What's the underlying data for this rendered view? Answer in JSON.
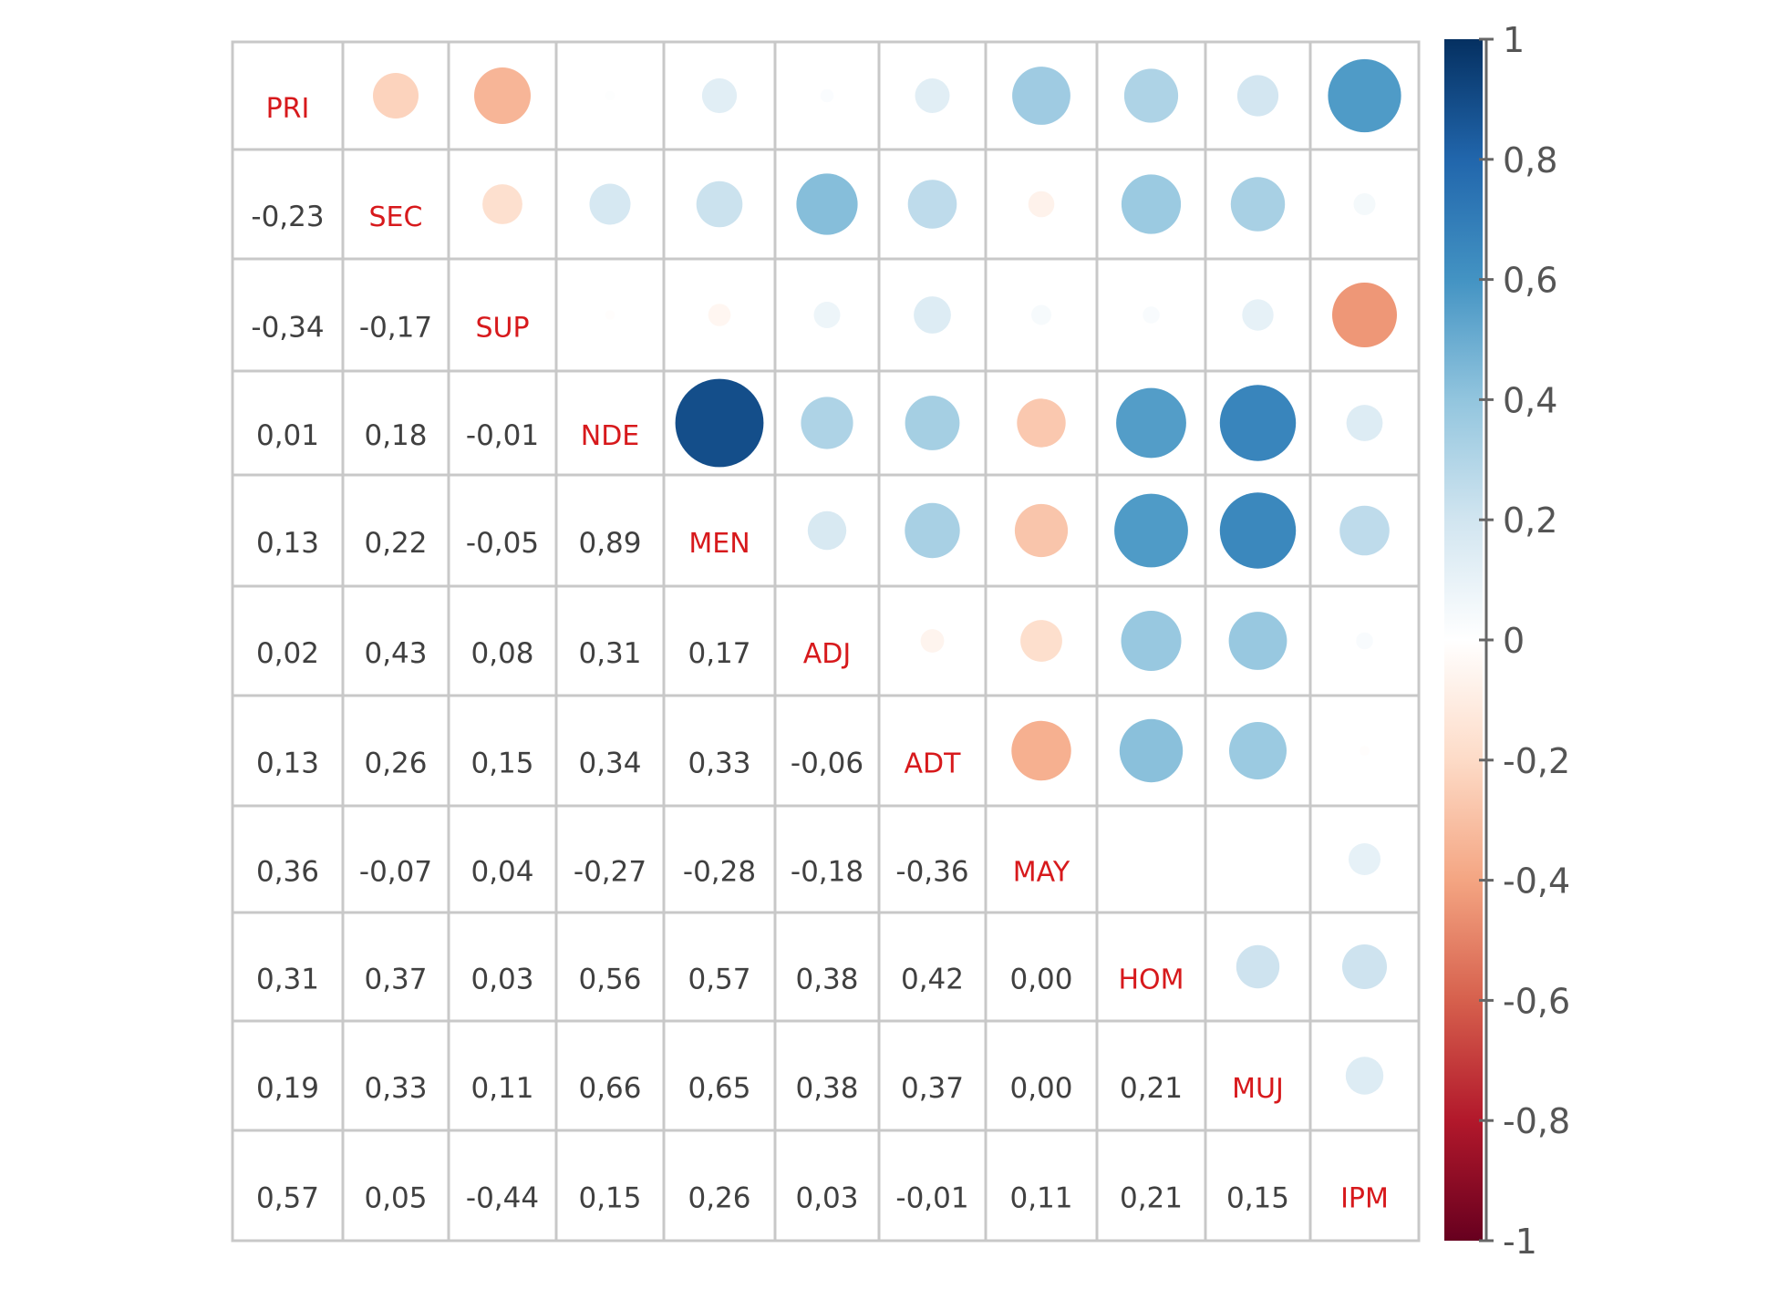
{
  "chart_data": {
    "type": "heatmap",
    "variables": [
      "PRI",
      "SEC",
      "SUP",
      "NDE",
      "MEN",
      "ADJ",
      "ADT",
      "MAY",
      "HOM",
      "MUJ",
      "IPM"
    ],
    "matrix": [
      [
        1,
        -0.23,
        -0.34,
        0.01,
        0.13,
        0.02,
        0.13,
        0.36,
        0.31,
        0.19,
        0.57
      ],
      [
        -0.23,
        1,
        -0.17,
        0.18,
        0.22,
        0.43,
        0.26,
        -0.07,
        0.37,
        0.33,
        0.05
      ],
      [
        -0.34,
        -0.17,
        1,
        -0.01,
        -0.05,
        0.08,
        0.15,
        0.04,
        0.03,
        0.11,
        -0.44
      ],
      [
        0.01,
        0.18,
        -0.01,
        1,
        0.89,
        0.31,
        0.34,
        -0.27,
        0.56,
        0.66,
        0.15
      ],
      [
        0.13,
        0.22,
        -0.05,
        0.89,
        1,
        0.17,
        0.33,
        -0.28,
        0.57,
        0.65,
        0.26
      ],
      [
        0.02,
        0.43,
        0.08,
        0.31,
        0.17,
        1,
        -0.06,
        -0.18,
        0.38,
        0.38,
        0.03
      ],
      [
        0.13,
        0.26,
        0.15,
        0.34,
        0.33,
        -0.06,
        1,
        -0.36,
        0.42,
        0.37,
        -0.01
      ],
      [
        0.36,
        -0.07,
        0.04,
        -0.27,
        -0.28,
        -0.18,
        -0.36,
        1,
        0.0,
        0.0,
        0.11
      ],
      [
        0.31,
        0.37,
        0.03,
        0.56,
        0.57,
        0.38,
        0.42,
        0.0,
        1,
        0.21,
        0.21
      ],
      [
        0.19,
        0.33,
        0.11,
        0.66,
        0.65,
        0.38,
        0.37,
        0.0,
        0.21,
        1,
        0.15
      ],
      [
        0.57,
        0.05,
        -0.44,
        0.15,
        0.26,
        0.03,
        -0.01,
        0.11,
        0.21,
        0.15,
        1
      ]
    ],
    "lower_labels": [
      [
        "-0,23"
      ],
      [
        "-0,34",
        "-0,17"
      ],
      [
        "0,01",
        "0,18",
        "-0,01"
      ],
      [
        "0,13",
        "0,22",
        "-0,05",
        "0,89"
      ],
      [
        "0,02",
        "0,43",
        "0,08",
        "0,31",
        "0,17"
      ],
      [
        "0,13",
        "0,26",
        "0,15",
        "0,34",
        "0,33",
        "-0,06"
      ],
      [
        "0,36",
        "-0,07",
        "0,04",
        "-0,27",
        "-0,28",
        "-0,18",
        "-0,36"
      ],
      [
        "0,31",
        "0,37",
        "0,03",
        "0,56",
        "0,57",
        "0,38",
        "0,42",
        "0,00"
      ],
      [
        "0,19",
        "0,33",
        "0,11",
        "0,66",
        "0,65",
        "0,38",
        "0,37",
        "0,00",
        "0,21"
      ],
      [
        "0,57",
        "0,05",
        "-0,44",
        "0,15",
        "0,26",
        "0,03",
        "-0,01",
        "0,11",
        "0,21",
        "0,15"
      ]
    ],
    "colorbar": {
      "range": [
        -1,
        1
      ],
      "ticks": [
        {
          "value": 1,
          "label": "1"
        },
        {
          "value": 0.8,
          "label": "0,8"
        },
        {
          "value": 0.6,
          "label": "0,6"
        },
        {
          "value": 0.4,
          "label": "0,4"
        },
        {
          "value": 0.2,
          "label": "0,2"
        },
        {
          "value": 0,
          "label": "0"
        },
        {
          "value": -0.2,
          "label": "-0,2"
        },
        {
          "value": -0.4,
          "label": "-0,4"
        },
        {
          "value": -0.6,
          "label": "-0,6"
        },
        {
          "value": -0.8,
          "label": "-0,8"
        },
        {
          "value": -1,
          "label": "-1"
        }
      ]
    },
    "upper_display": "circles sized and colored by correlation",
    "lower_display": "numeric coefficients",
    "diagonal_display": "variable names"
  },
  "colors": {
    "diagonal_text": "#d7191c",
    "value_text": "#404040",
    "grid": "#c8c8c8",
    "tick_text": "#555555",
    "colorbar_axis": "#666666",
    "scale": [
      "#67001f",
      "#b2182b",
      "#d6604d",
      "#f4a582",
      "#fddbc7",
      "#ffffff",
      "#d1e5f0",
      "#92c5de",
      "#4393c3",
      "#2166ac",
      "#053061"
    ]
  }
}
